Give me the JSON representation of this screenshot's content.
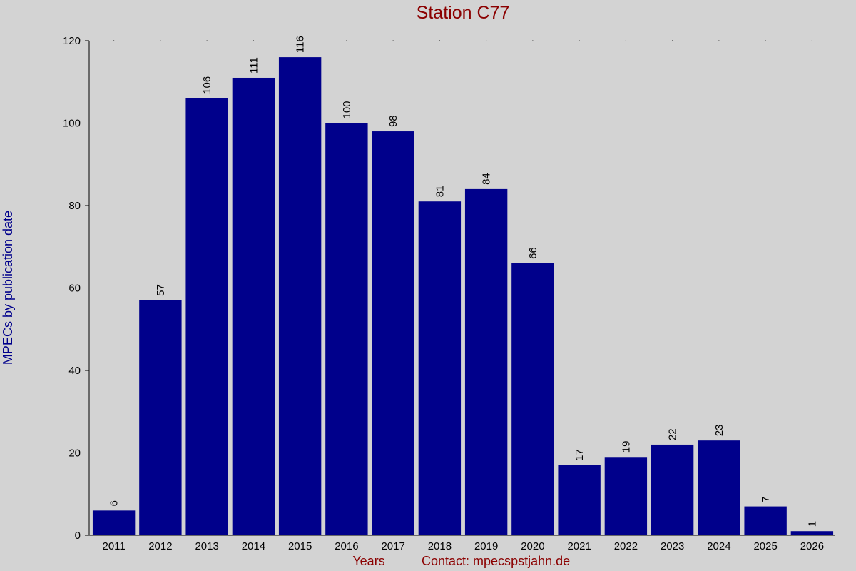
{
  "colors": {
    "background": "#d3d3d3",
    "bar": "#00008b",
    "title": "#8b0000",
    "ylabel": "#00008b",
    "footer": "#8b0000"
  },
  "chart_data": {
    "type": "bar",
    "title": "Station C77",
    "xlabel": "Years",
    "ylabel": "MPECs by publication date",
    "footer": "Contact: mpecs",
    "footer_domain": "pstjahn.de",
    "categories": [
      "2011",
      "2012",
      "2013",
      "2014",
      "2015",
      "2016",
      "2017",
      "2018",
      "2019",
      "2020",
      "2021",
      "2022",
      "2023",
      "2024",
      "2025",
      "2026"
    ],
    "values": [
      6,
      57,
      106,
      111,
      116,
      100,
      98,
      81,
      84,
      66,
      17,
      19,
      22,
      23,
      7,
      1
    ],
    "ylim": [
      0,
      120
    ],
    "yticks": [
      0,
      20,
      40,
      60,
      80,
      100,
      120
    ],
    "data_labels": true,
    "grid": "dotted top border"
  }
}
